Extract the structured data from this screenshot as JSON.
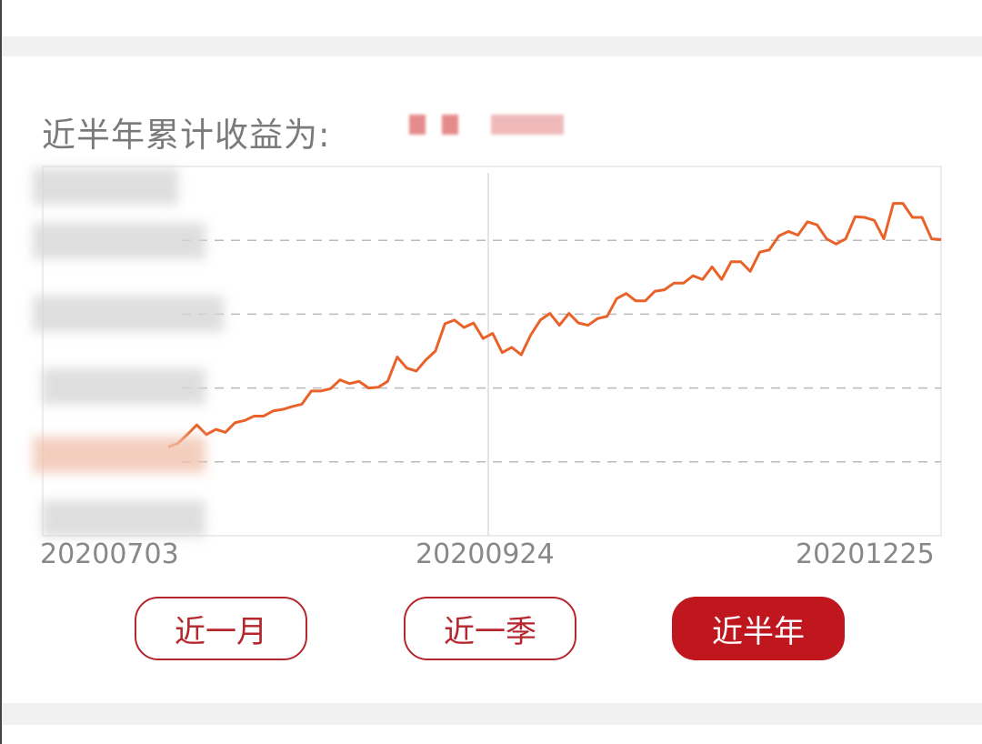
{
  "header": {
    "title": "近半年累计收益为:",
    "value_masked": true
  },
  "chart_data": {
    "type": "line",
    "title": "",
    "xlabel": "",
    "ylabel": "",
    "x_tick_labels": [
      "20200703",
      "20200924",
      "20201225"
    ],
    "y_tick_labels_blurred": true,
    "ylim": [
      0,
      5
    ],
    "grid": "horizontal-dashed",
    "line_color": "#e8622a",
    "series": [
      {
        "values": [
          1.2,
          1.25,
          1.37,
          1.5,
          1.37,
          1.44,
          1.4,
          1.53,
          1.56,
          1.62,
          1.62,
          1.69,
          1.71,
          1.75,
          1.78,
          1.96,
          1.96,
          1.99,
          2.11,
          2.06,
          2.09,
          2.0,
          2.01,
          2.09,
          2.42,
          2.27,
          2.23,
          2.38,
          2.5,
          2.87,
          2.92,
          2.82,
          2.88,
          2.67,
          2.74,
          2.48,
          2.55,
          2.45,
          2.72,
          2.92,
          3.01,
          2.85,
          3.01,
          2.88,
          2.85,
          2.94,
          2.97,
          3.21,
          3.28,
          3.18,
          3.18,
          3.31,
          3.33,
          3.42,
          3.42,
          3.52,
          3.47,
          3.64,
          3.47,
          3.71,
          3.71,
          3.58,
          3.84,
          3.87,
          4.06,
          4.12,
          4.07,
          4.25,
          4.21,
          4.02,
          3.95,
          4.02,
          4.32,
          4.31,
          4.27,
          4.02,
          4.5,
          4.5,
          4.31,
          4.31,
          4.02,
          4.01
        ]
      }
    ]
  },
  "range_buttons": [
    {
      "label": "近一月",
      "active": false
    },
    {
      "label": "近一季",
      "active": false
    },
    {
      "label": "近半年",
      "active": true
    }
  ],
  "colors": {
    "accent": "#c0171f",
    "line": "#e8622a",
    "grid": "#bbbbbb"
  }
}
